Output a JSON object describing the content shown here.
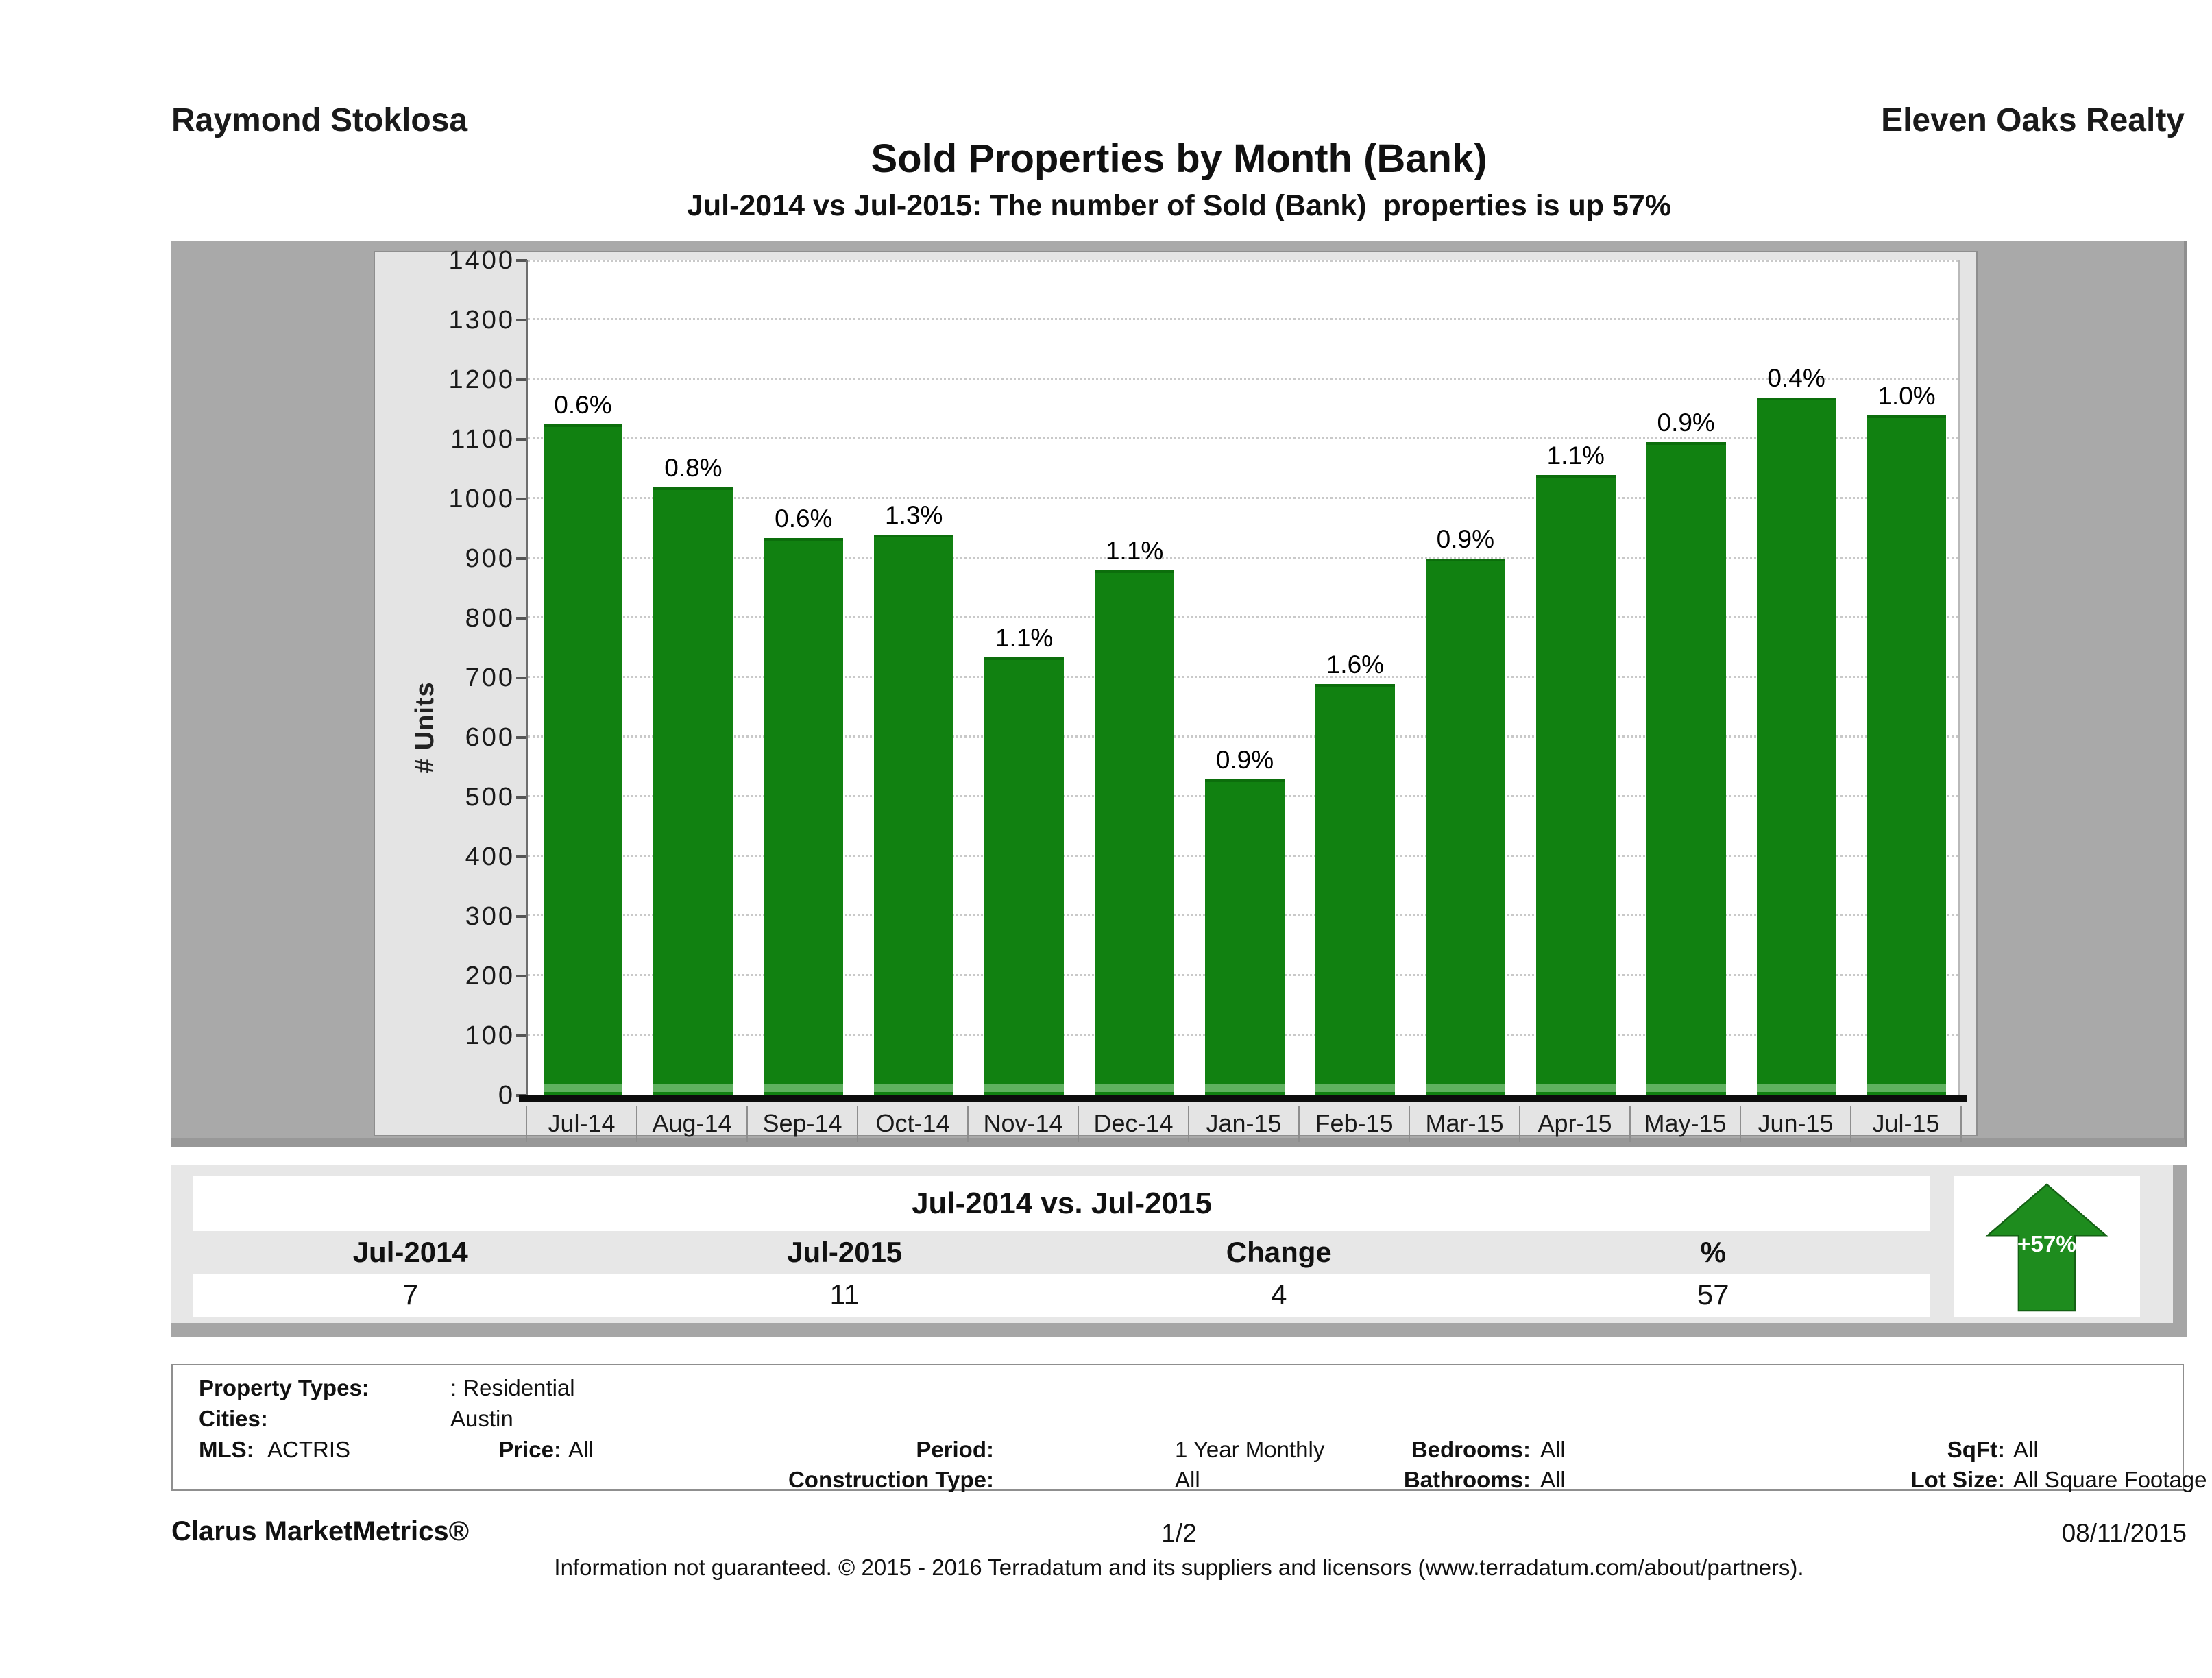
{
  "header": {
    "agent": "Raymond Stoklosa",
    "company": "Eleven Oaks Realty",
    "title": "Sold Properties by Month (Bank)",
    "subtitle": "Jul-2014 vs Jul-2015: The number of Sold (Bank)  properties is up 57%"
  },
  "chart_data": {
    "type": "bar",
    "title": "Sold Properties by Month (Bank)",
    "xlabel": "",
    "ylabel": "# Units",
    "ylim": [
      0,
      1400
    ],
    "y_ticks": [
      0,
      100,
      200,
      300,
      400,
      500,
      600,
      700,
      800,
      900,
      1000,
      1100,
      1200,
      1300,
      1400
    ],
    "grid": true,
    "legend_position": "none",
    "bar_color": "#118111",
    "categories": [
      "Jul-14",
      "Aug-14",
      "Sep-14",
      "Oct-14",
      "Nov-14",
      "Dec-14",
      "Jan-15",
      "Feb-15",
      "Mar-15",
      "Apr-15",
      "May-15",
      "Jun-15",
      "Jul-15"
    ],
    "values": [
      1125,
      1020,
      935,
      940,
      735,
      880,
      530,
      690,
      900,
      1040,
      1095,
      1170,
      1140
    ],
    "bar_labels": [
      "0.6%",
      "0.8%",
      "0.6%",
      "1.3%",
      "1.1%",
      "1.1%",
      "0.9%",
      "1.6%",
      "0.9%",
      "1.1%",
      "0.9%",
      "0.4%",
      "1.0%"
    ]
  },
  "comparison": {
    "title": "Jul-2014 vs. Jul-2015",
    "columns": [
      "Jul-2014",
      "Jul-2015",
      "Change",
      "%"
    ],
    "values": [
      "7",
      "11",
      "4",
      "57"
    ],
    "arrow_label": "+57%",
    "arrow_color": "#1e8c1e"
  },
  "filters": {
    "property_types_label": "Property Types:",
    "property_types": ": Residential",
    "cities_label": "Cities:",
    "cities": "Austin",
    "mls_label": "MLS:",
    "mls": "ACTRIS",
    "price_label": "Price:",
    "price": "All",
    "period_label": "Period:",
    "period": "1 Year Monthly",
    "construction_label": "Construction Type:",
    "construction": "All",
    "bedrooms_label": "Bedrooms:",
    "bedrooms": "All",
    "bathrooms_label": "Bathrooms:",
    "bathrooms": "All",
    "sqft_label": "SqFt:",
    "sqft": "All",
    "lot_label": "Lot Size:",
    "lot": "All Square Footage"
  },
  "footer": {
    "brand": "Clarus MarketMetrics®",
    "page": "1/2",
    "date": "08/11/2015",
    "disclaimer": "Information not guaranteed. © 2015 - 2016 Terradatum and its suppliers and licensors (www.terradatum.com/about/partners)."
  }
}
